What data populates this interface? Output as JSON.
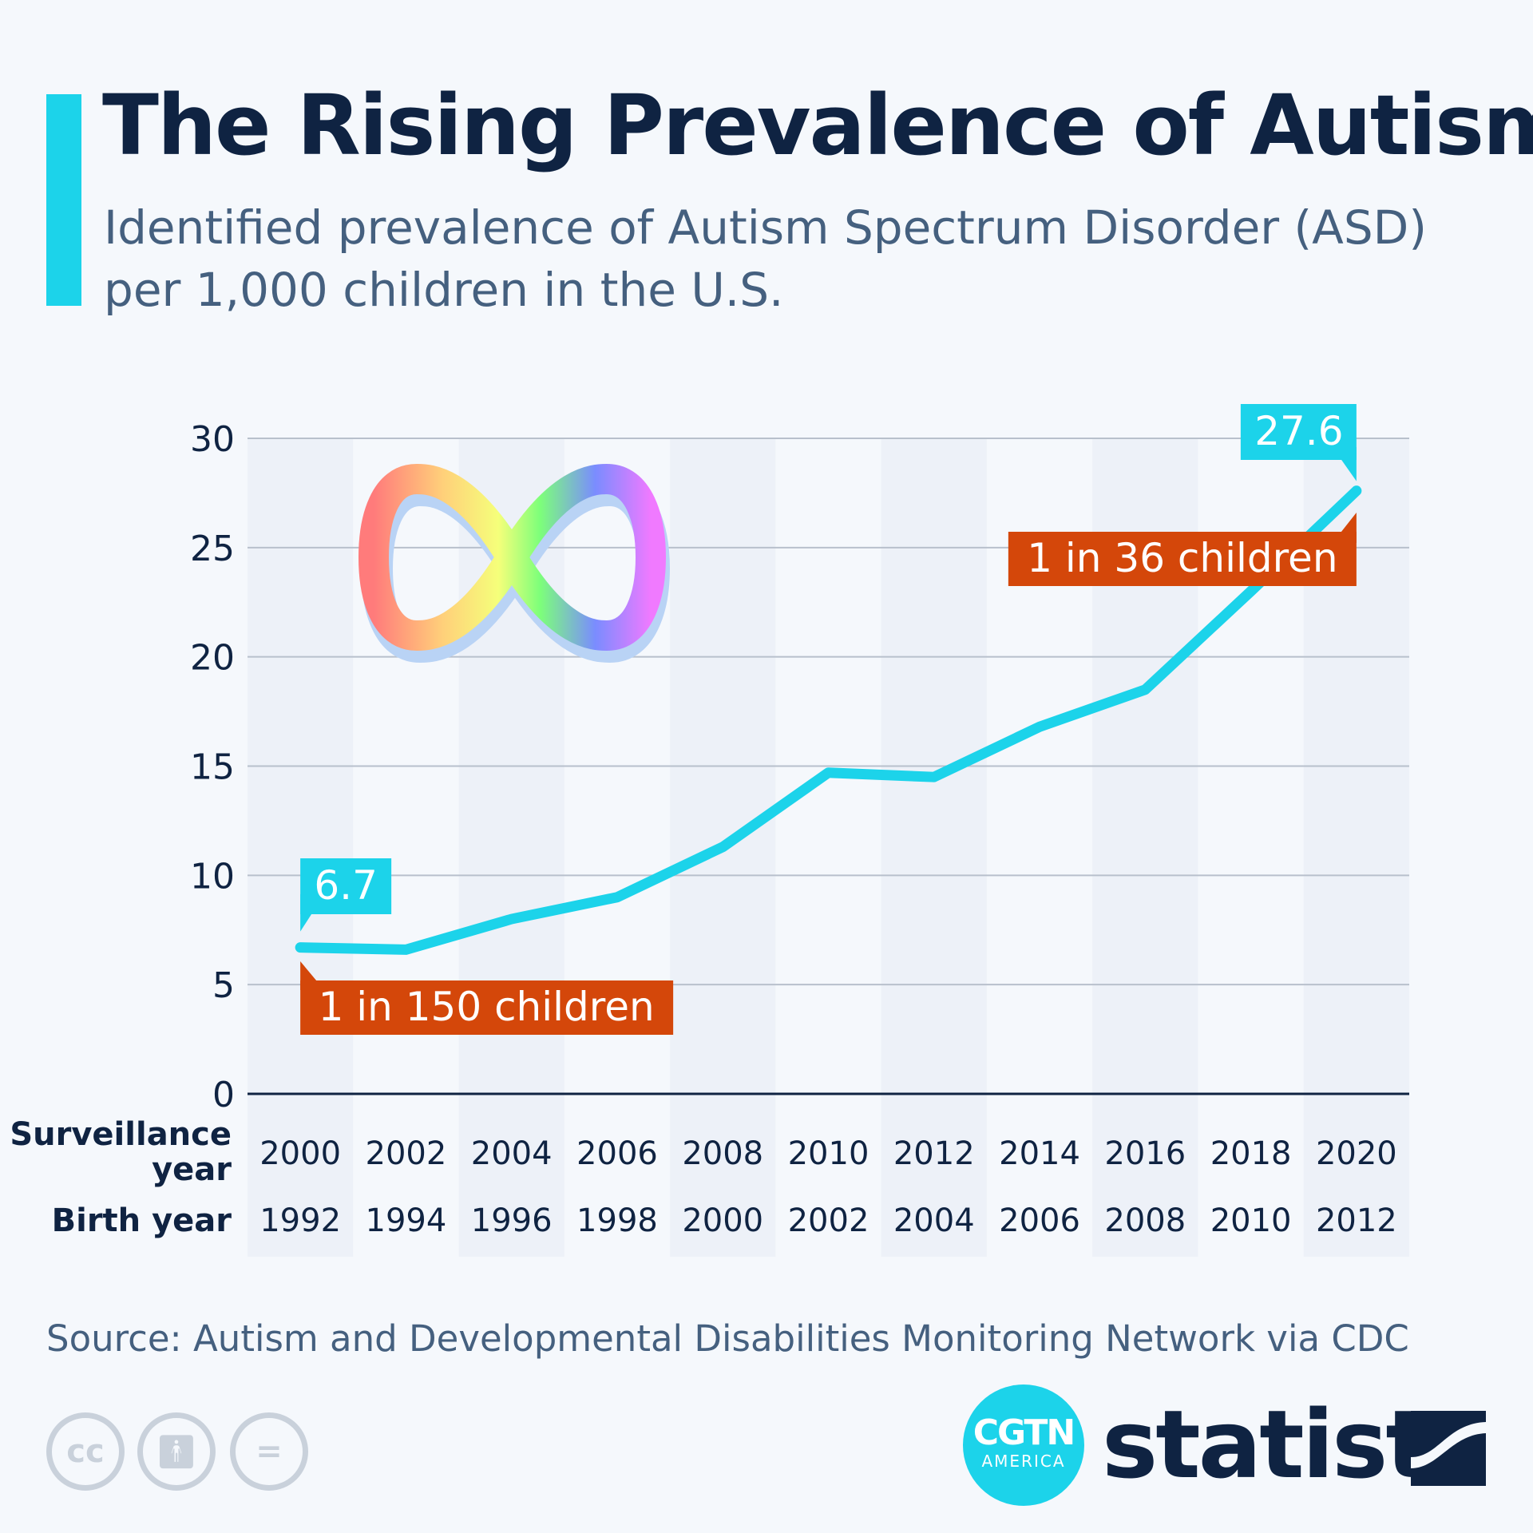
{
  "header": {
    "title": "The Rising Prevalence of Autism",
    "subtitle": "Identified prevalence of Autism Spectrum Disorder (ASD) per 1,000 children in the U.S."
  },
  "chart_data": {
    "type": "line",
    "title": "The Rising Prevalence of Autism",
    "subtitle": "Identified prevalence of Autism Spectrum Disorder (ASD) per 1,000 children in the U.S.",
    "x_row_labels": [
      "Surveillance year",
      "Birth year"
    ],
    "categories": [
      "2000",
      "2002",
      "2004",
      "2006",
      "2008",
      "2010",
      "2012",
      "2014",
      "2016",
      "2018",
      "2020"
    ],
    "birth_years": [
      "1992",
      "1994",
      "1996",
      "1998",
      "2000",
      "2002",
      "2004",
      "2006",
      "2008",
      "2010",
      "2012"
    ],
    "values": [
      6.7,
      6.6,
      8.0,
      9.0,
      11.3,
      14.7,
      14.5,
      16.8,
      18.5,
      23.0,
      27.6
    ],
    "ylim": [
      0,
      30
    ],
    "yticks": [
      "0",
      "5",
      "10",
      "15",
      "20",
      "25",
      "30"
    ],
    "grid": true,
    "data_labels": [
      {
        "index": 0,
        "text": "6.7"
      },
      {
        "index": 10,
        "text": "27.6"
      }
    ],
    "annotations": [
      {
        "index": 0,
        "text": "1 in 150 children"
      },
      {
        "index": 10,
        "text": "1 in 36 children"
      }
    ],
    "colors": {
      "line": "#1cd3ea",
      "annotation": "#d4470a",
      "column_shade": "#edf1f8",
      "grid": "#b8c0cc",
      "axis": "#0f2342"
    }
  },
  "footer": {
    "source": "Source: Autism and Developmental Disabilities Monitoring Network via CDC",
    "cgtn_main": "CGTN",
    "cgtn_sub": "AMERICA",
    "brand": "statista",
    "cc_icons": [
      "cc-icon",
      "attribution-icon",
      "no-derivatives-icon"
    ]
  }
}
